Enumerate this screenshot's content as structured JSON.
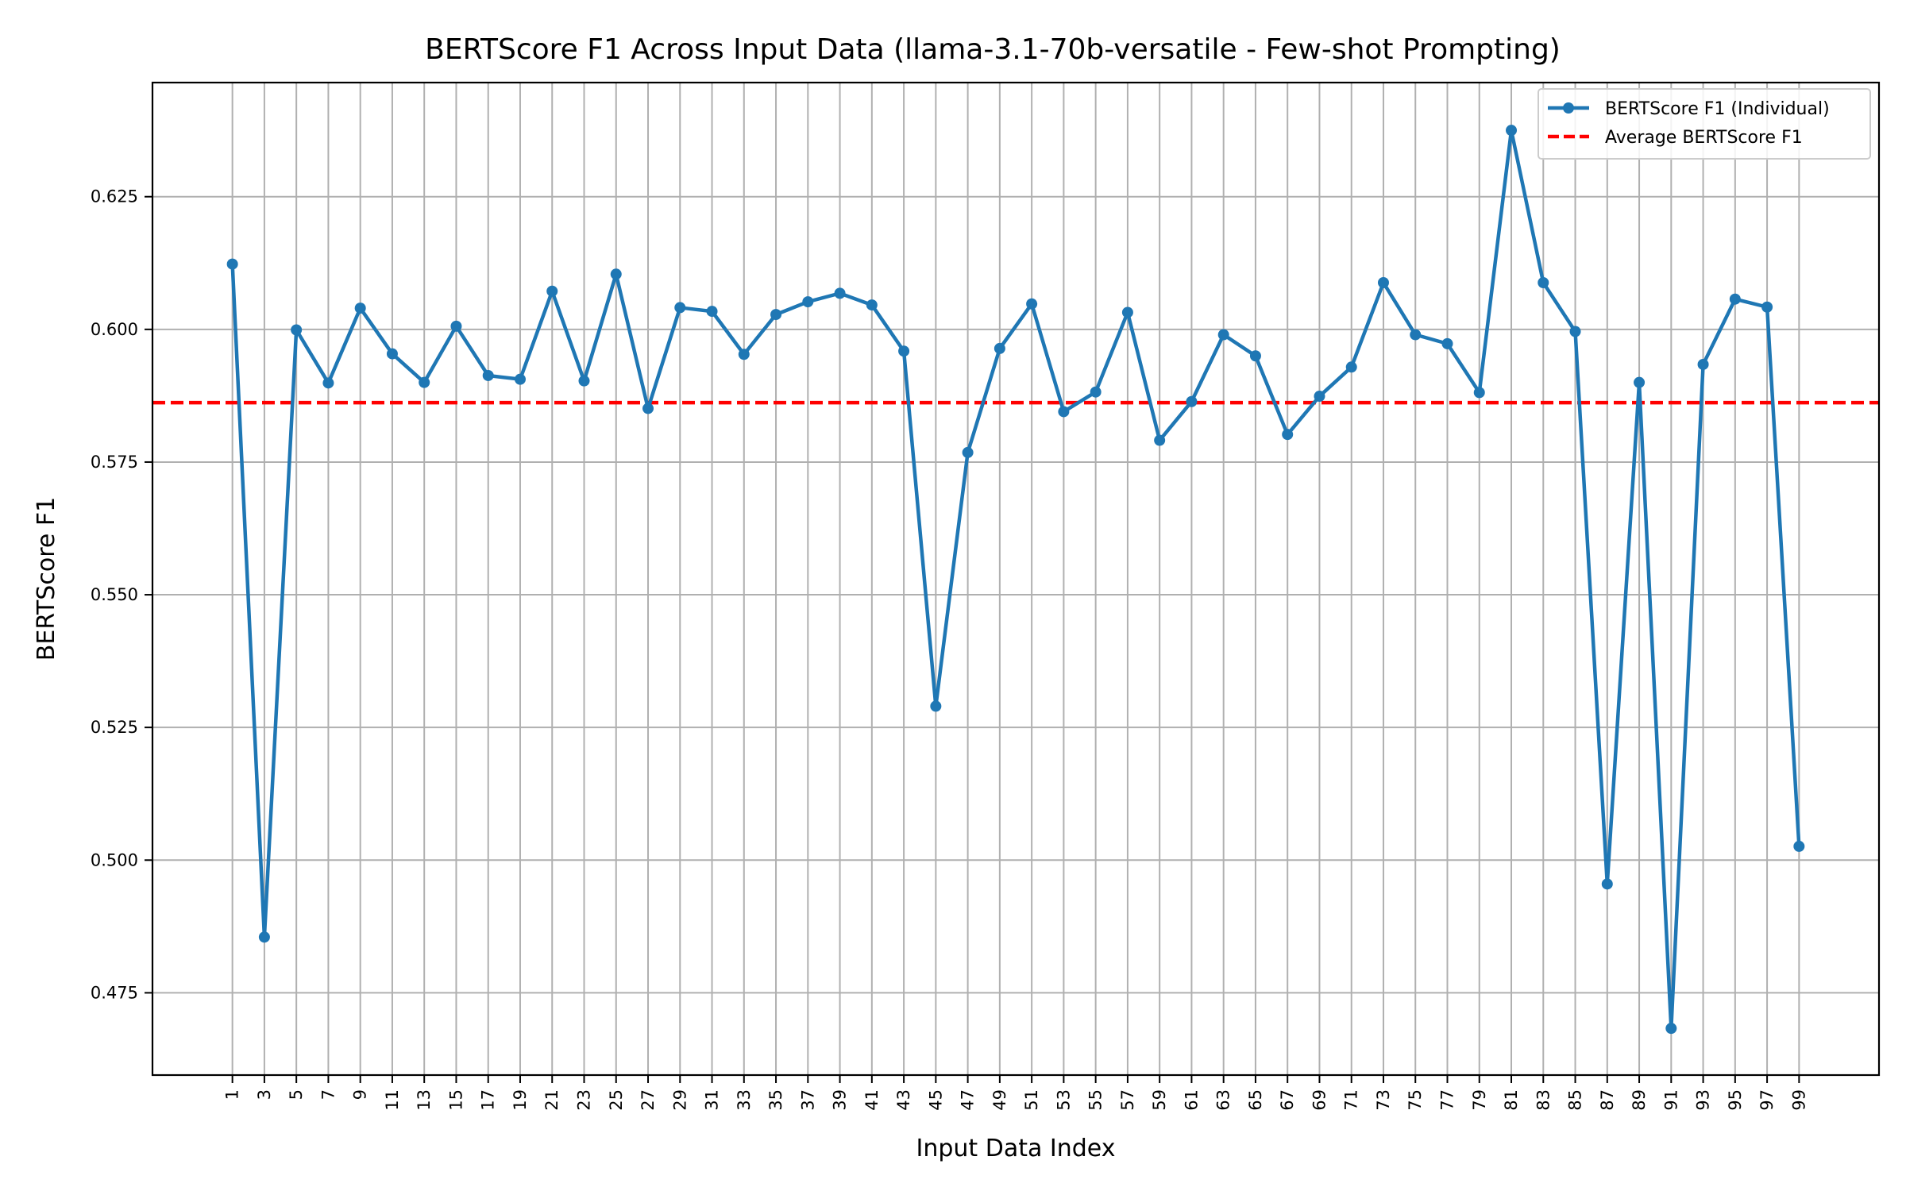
{
  "chart_data": {
    "type": "line",
    "title": "BERTScore F1 Across Input Data (llama-3.1-70b-versatile - Few-shot Prompting)",
    "xlabel": "Input Data Index",
    "ylabel": "BERTScore F1",
    "x_ticks": [
      1,
      3,
      5,
      7,
      9,
      11,
      13,
      15,
      17,
      19,
      21,
      23,
      25,
      27,
      29,
      31,
      33,
      35,
      37,
      39,
      41,
      43,
      45,
      47,
      49,
      51,
      53,
      55,
      57,
      59,
      61,
      63,
      65,
      67,
      69,
      71,
      73,
      75,
      77,
      79,
      81,
      83,
      85,
      87,
      89,
      91,
      93,
      95,
      97,
      99
    ],
    "y_ticks": [
      0.475,
      0.5,
      0.525,
      0.55,
      0.575,
      0.6,
      0.625
    ],
    "y_tick_labels": [
      "0.475",
      "0.500",
      "0.525",
      "0.550",
      "0.575",
      "0.600",
      "0.625"
    ],
    "xlim": [
      -4,
      104
    ],
    "ylim": [
      0.4595,
      0.6465
    ],
    "grid": true,
    "legend_position": "top-right",
    "series": [
      {
        "name": "BERTScore F1 (Individual)",
        "color": "#1f77b4",
        "marker": "circle",
        "x": [
          1,
          3,
          5,
          7,
          9,
          11,
          13,
          15,
          17,
          19,
          21,
          23,
          25,
          27,
          29,
          31,
          33,
          35,
          37,
          39,
          41,
          43,
          45,
          47,
          49,
          51,
          53,
          55,
          57,
          59,
          61,
          63,
          65,
          67,
          69,
          71,
          73,
          75,
          77,
          79,
          81,
          83,
          85,
          87,
          89,
          91,
          93,
          95,
          97,
          99
        ],
        "values": [
          0.6123,
          0.4855,
          0.5999,
          0.5899,
          0.604,
          0.5954,
          0.59,
          0.6006,
          0.5913,
          0.5906,
          0.6072,
          0.5903,
          0.6104,
          0.5851,
          0.6041,
          0.6034,
          0.5953,
          0.6028,
          0.6052,
          0.6068,
          0.6046,
          0.5959,
          0.529,
          0.5768,
          0.5964,
          0.6048,
          0.5845,
          0.5882,
          0.6032,
          0.5791,
          0.5864,
          0.599,
          0.595,
          0.5802,
          0.5874,
          0.5929,
          0.6088,
          0.599,
          0.5973,
          0.5881,
          0.6375,
          0.6088,
          0.5996,
          0.4955,
          0.59,
          0.4683,
          0.5934,
          0.6057,
          0.6042,
          0.5026
        ]
      },
      {
        "name": "Average BERTScore F1",
        "color": "#ff0000",
        "style": "dashed",
        "value": 0.5862
      }
    ]
  }
}
